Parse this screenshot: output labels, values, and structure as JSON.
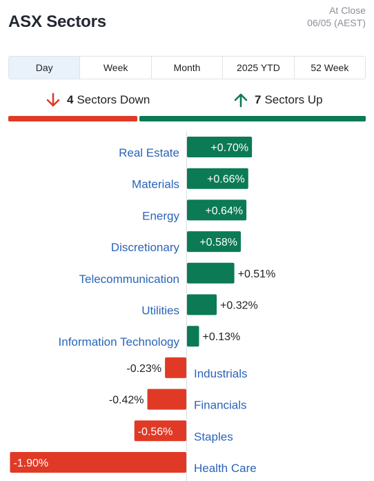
{
  "header": {
    "title": "ASX Sectors",
    "as_of_line1": "At Close",
    "as_of_line2": "06/05 (AEST)"
  },
  "tabs": [
    {
      "label": "Day",
      "active": true
    },
    {
      "label": "Week",
      "active": false
    },
    {
      "label": "Month",
      "active": false
    },
    {
      "label": "2025 YTD",
      "active": false
    },
    {
      "label": "52 Week",
      "active": false
    }
  ],
  "summary": {
    "down_count": "4",
    "down_text": "Sectors Down",
    "up_count": "7",
    "up_text": "Sectors Up",
    "down_color": "#e03a26",
    "up_color": "#0b7a55"
  },
  "chart_data": {
    "type": "bar",
    "orientation": "horizontal",
    "categories": [
      "Real Estate",
      "Materials",
      "Energy",
      "Discretionary",
      "Telecommunication",
      "Utilities",
      "Information Technology",
      "Industrials",
      "Financials",
      "Staples",
      "Health Care"
    ],
    "values": [
      0.7,
      0.66,
      0.64,
      0.58,
      0.51,
      0.32,
      0.13,
      -0.23,
      -0.42,
      -0.56,
      -1.9
    ],
    "value_labels": [
      "+0.70%",
      "+0.66%",
      "+0.64%",
      "+0.58%",
      "+0.51%",
      "+0.32%",
      "+0.13%",
      "-0.23%",
      "-0.42%",
      "-0.56%",
      "-1.90%"
    ],
    "unit": "%",
    "positive_color": "#0b7a55",
    "negative_color": "#e03a26",
    "label_color": "#2a64b8"
  }
}
